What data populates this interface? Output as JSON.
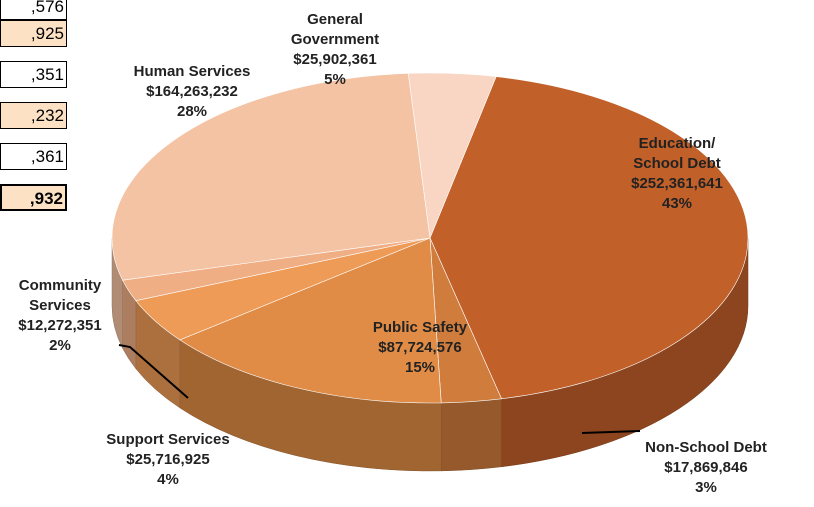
{
  "table_fragment": {
    "cells": [
      ",576",
      ",925",
      ",351",
      ",232",
      ",361",
      ",932"
    ]
  },
  "chart_data": {
    "type": "pie",
    "style": "3d",
    "slices": [
      {
        "label": [
          "Education/",
          "School Debt"
        ],
        "value_text": "$252,361,641",
        "pct_text": "43%",
        "value": 252361641,
        "color": "#c2602a"
      },
      {
        "label": [
          "Non-School Debt"
        ],
        "value_text": "$17,869,846",
        "pct_text": "3%",
        "value": 17869846,
        "color": "#cf7c3c"
      },
      {
        "label": [
          "Public Safety"
        ],
        "value_text": "$87,724,576",
        "pct_text": "15%",
        "value": 87724576,
        "color": "#e08c46"
      },
      {
        "label": [
          "Support Services"
        ],
        "value_text": "$25,716,925",
        "pct_text": "4%",
        "value": 25716925,
        "color": "#ef9b58"
      },
      {
        "label": [
          "Community",
          "Services"
        ],
        "value_text": "$12,272,351",
        "pct_text": "2%",
        "value": 12272351,
        "color": "#f0ae84"
      },
      {
        "label": [
          "Human Services"
        ],
        "value_text": "$164,263,232",
        "pct_text": "28%",
        "value": 164263232,
        "color": "#f4c3a3"
      },
      {
        "label": [
          "General",
          "Government"
        ],
        "value_text": "$25,902,361",
        "pct_text": "5%",
        "value": 25902361,
        "color": "#f8d6c3"
      }
    ]
  }
}
